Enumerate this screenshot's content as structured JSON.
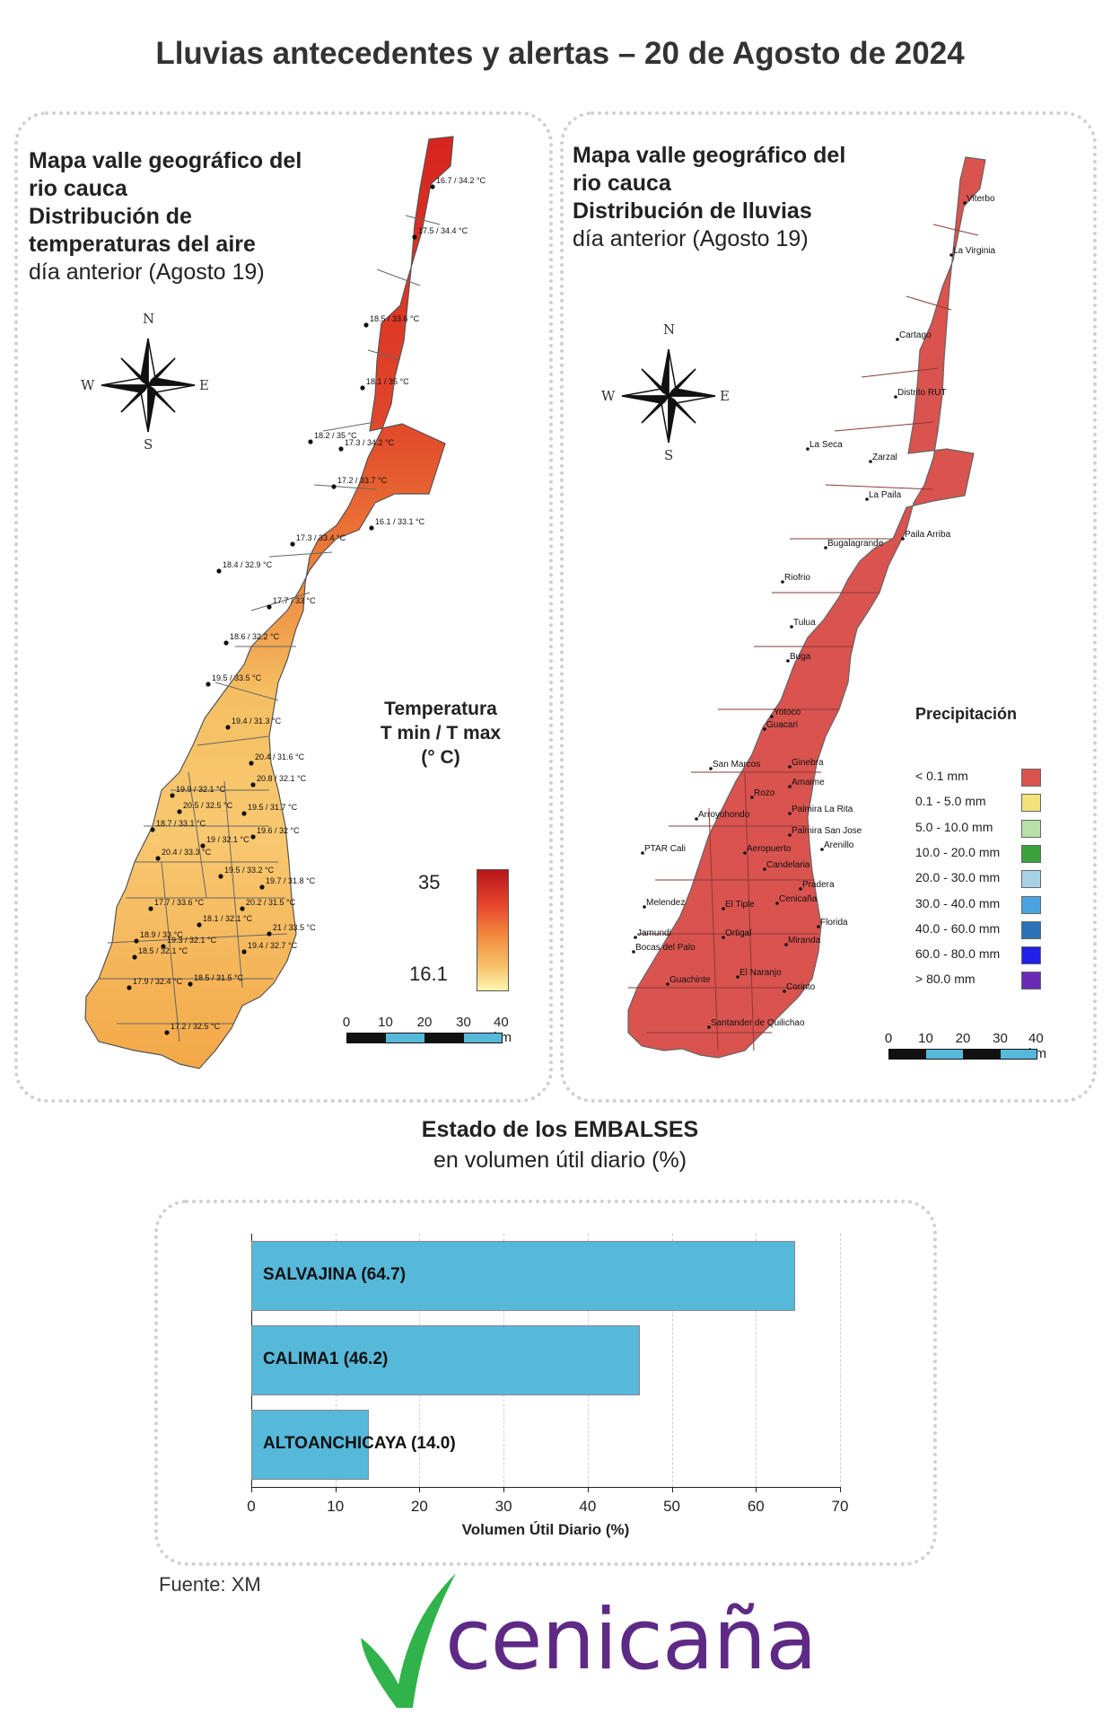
{
  "title": "Lluvias antecedentes y alertas – 20 de Agosto de 2024",
  "temp_map": {
    "heading_lines": [
      {
        "text": "Mapa valle geográfico del",
        "bold": true
      },
      {
        "text": "rio cauca",
        "bold": true
      },
      {
        "text": "Distribución de",
        "bold": true
      },
      {
        "text": "temperaturas del aire",
        "bold": true
      },
      {
        "text": "día anterior (Agosto 19)",
        "bold": false
      }
    ],
    "compass": {
      "n": "N",
      "s": "S",
      "e": "E",
      "w": "W"
    },
    "legend_title_1": "Temperatura",
    "legend_title_2": "T min / T max",
    "legend_title_3": "(° C)",
    "legend_max": "35",
    "legend_min": "16.1",
    "scale_labels": [
      "0",
      "10",
      "20",
      "30",
      "40 km"
    ],
    "stations": [
      "16.7 / 34.2 °C",
      "17.5 / 34.4 °C",
      "18.5 / 33.6 °C",
      "18.1 / 35 °C",
      "18.2 / 35 °C",
      "17.3 / 34.2 °C",
      "17.2 / 33.7 °C",
      "16.1 / 33.1 °C",
      "17.3 / 33.4 °C",
      "18.4 / 32.9 °C",
      "17.7 / 33 °C",
      "18.6 / 32.2 °C",
      "19.5 / 33.5 °C",
      "19.4 / 31.3 °C",
      "20.4 / 31.6 °C",
      "20.8 / 32.1 °C",
      "19.9 / 32.1 °C",
      "20.5 / 32.5 °C",
      "19.5 / 31.7 °C",
      "18.7 / 33.1 °C",
      "19.6 / 32 °C",
      "20.4 / 33.3 °C",
      "19 / 32.1 °C",
      "19.5 / 33.2 °C",
      "19.7 / 31.8 °C",
      "17.7 / 33.6 °C",
      "20.2 / 31.5 °C",
      "18.1 / 32.1 °C",
      "21 / 33.5 °C",
      "18.9 / 33 °C",
      "19.3 / 32.1 °C",
      "18.5 / 32.1 °C",
      "19.4 / 32.7 °C",
      "17.9 / 32.4 °C",
      "18.5 / 31.5 °C",
      "17.2 / 32.5 °C"
    ]
  },
  "rain_map": {
    "heading_lines": [
      {
        "text": "Mapa valle geográfico del",
        "bold": true
      },
      {
        "text": "rio cauca",
        "bold": true
      },
      {
        "text": "Distribución de lluvias",
        "bold": true
      },
      {
        "text": "día anterior (Agosto 19)",
        "bold": false
      }
    ],
    "compass": {
      "n": "N",
      "s": "S",
      "e": "E",
      "w": "W"
    },
    "places": [
      "Viterbo",
      "La Virginia",
      "Cartago",
      "Distrito RUT",
      "La Seca",
      "Zarzal",
      "La Paila",
      "Paila Arriba",
      "Bugalagrande",
      "Riofrio",
      "Tulua",
      "Buga",
      "Yotoco",
      "Guacari",
      "Ginebra",
      "San Marcos",
      "Rozo",
      "Amaime",
      "Palmira La Rita",
      "Arroyohondo",
      "Palmira San Jose",
      "Aeropuerto",
      "Arenillo",
      "PTAR Cali",
      "Candelaria",
      "Pradera",
      "Melendez",
      "El Tiple",
      "Cenicaña",
      "Florida",
      "Jamundi",
      "Bocas del Palo",
      "Ortigal",
      "Miranda",
      "Guachinte",
      "El Naranjo",
      "Corinto",
      "Santander de Quilichao"
    ],
    "legend_title": "Precipitación",
    "legend": [
      {
        "label": "< 0.1 mm",
        "color": "#d9534f"
      },
      {
        "label": "0.1 - 5.0 mm",
        "color": "#f2e27a"
      },
      {
        "label": "5.0 - 10.0 mm",
        "color": "#b8e0a8"
      },
      {
        "label": "10.0 - 20.0 mm",
        "color": "#3ba33b"
      },
      {
        "label": "20.0 - 30.0 mm",
        "color": "#a8d3e6"
      },
      {
        "label": "30.0 - 40.0 mm",
        "color": "#4aa3df"
      },
      {
        "label": "40.0 - 60.0 mm",
        "color": "#2a72b5"
      },
      {
        "label": "60.0 - 80.0 mm",
        "color": "#2020e8"
      },
      {
        "label": "> 80.0 mm",
        "color": "#6a2ab5"
      }
    ],
    "scale_labels": [
      "0",
      "10",
      "20",
      "30",
      "40 km"
    ]
  },
  "reservoirs": {
    "title": "Estado de los EMBALSES",
    "subtitle": "en volumen útil diario (%)",
    "xlabel": "Volumen Útil Diario (%)"
  },
  "chart_data": {
    "type": "bar",
    "orientation": "horizontal",
    "categories": [
      "SALVAJINA",
      "CALIMA1",
      "ALTOANCHICAYA"
    ],
    "data_labels": [
      "SALVAJINA (64.7)",
      "CALIMA1 (46.2)",
      "ALTOANCHICAYA (14.0)"
    ],
    "values": [
      64.7,
      46.2,
      14.0
    ],
    "xlabel": "Volumen Útil Diario (%)",
    "xlim": [
      0,
      70
    ],
    "xticks": [
      0,
      10,
      20,
      30,
      40,
      50,
      60,
      70
    ],
    "grid": true,
    "bar_color": "#57b9da"
  },
  "source": "Fuente: XM",
  "logo": {
    "text": "cenicaña",
    "leaf_color": "#2fb34a",
    "text_color": "#5e2a86"
  }
}
